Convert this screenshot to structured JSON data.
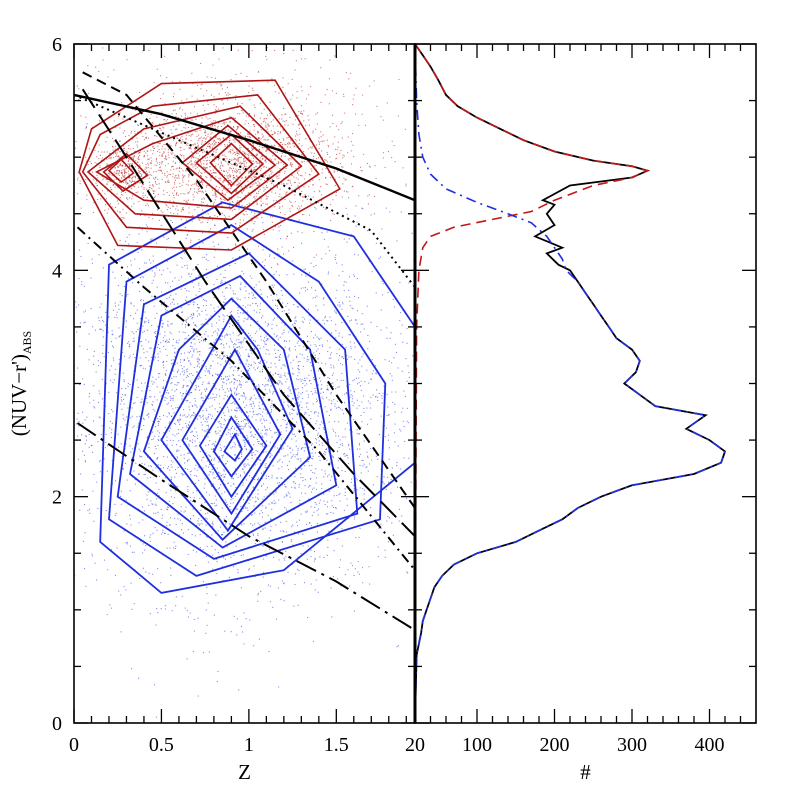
{
  "chart_data": [
    {
      "panel": "left",
      "type": "scatter",
      "xlabel": "Z",
      "ylabel_main": "(NUV−r')",
      "ylabel_sub": "ABS",
      "xlim": [
        0,
        1.95
      ],
      "ylim": [
        0,
        6
      ],
      "x_ticks": [
        "0",
        "0.5",
        "1",
        "1.5"
      ],
      "x_tick_values": [
        0,
        0.5,
        1,
        1.5
      ],
      "y_ticks": [
        "0",
        "2",
        "4",
        "6"
      ],
      "y_tick_values": [
        0,
        2,
        4,
        6
      ],
      "colors": {
        "red": "#b01515",
        "blue": "#1f2fe0",
        "black": "#000000"
      },
      "contours_red": [
        [
          [
            0.2,
            4.88
          ],
          [
            0.27,
            4.78
          ],
          [
            0.34,
            4.86
          ],
          [
            0.27,
            4.98
          ]
        ],
        [
          [
            0.17,
            4.87
          ],
          [
            0.28,
            4.7
          ],
          [
            0.42,
            4.84
          ],
          [
            0.3,
            5.03
          ]
        ],
        [
          [
            0.78,
            4.95
          ],
          [
            0.9,
            4.75
          ],
          [
            1.02,
            4.94
          ],
          [
            0.9,
            5.12
          ]
        ],
        [
          [
            0.7,
            4.95
          ],
          [
            0.9,
            4.68
          ],
          [
            1.08,
            4.94
          ],
          [
            0.9,
            5.2
          ]
        ],
        [
          [
            0.62,
            4.95
          ],
          [
            0.88,
            4.62
          ],
          [
            1.15,
            4.93
          ],
          [
            0.88,
            5.28
          ]
        ],
        [
          [
            0.13,
            4.87
          ],
          [
            0.4,
            4.62
          ],
          [
            0.9,
            4.55
          ],
          [
            1.22,
            4.93
          ],
          [
            0.9,
            5.35
          ],
          [
            0.45,
            5.12
          ]
        ],
        [
          [
            0.08,
            4.87
          ],
          [
            0.35,
            4.5
          ],
          [
            0.9,
            4.45
          ],
          [
            1.3,
            4.92
          ],
          [
            0.95,
            5.45
          ],
          [
            0.4,
            5.25
          ]
        ],
        [
          [
            0.05,
            4.87
          ],
          [
            0.3,
            4.38
          ],
          [
            0.9,
            4.33
          ],
          [
            1.4,
            4.85
          ],
          [
            1.05,
            5.55
          ],
          [
            0.45,
            5.45
          ],
          [
            0.15,
            5.2
          ]
        ],
        [
          [
            0.03,
            4.87
          ],
          [
            0.25,
            4.22
          ],
          [
            0.9,
            4.18
          ],
          [
            1.52,
            4.72
          ],
          [
            1.15,
            5.68
          ],
          [
            0.5,
            5.65
          ],
          [
            0.1,
            5.25
          ]
        ]
      ],
      "contours_blue": [
        [
          [
            0.86,
            2.4
          ],
          [
            0.92,
            2.32
          ],
          [
            0.96,
            2.42
          ],
          [
            0.92,
            2.55
          ]
        ],
        [
          [
            0.8,
            2.4
          ],
          [
            0.9,
            2.18
          ],
          [
            1.02,
            2.42
          ],
          [
            0.9,
            2.7
          ]
        ],
        [
          [
            0.72,
            2.45
          ],
          [
            0.9,
            2.0
          ],
          [
            1.1,
            2.45
          ],
          [
            0.9,
            2.9
          ]
        ],
        [
          [
            0.62,
            2.5
          ],
          [
            0.9,
            1.85
          ],
          [
            1.18,
            2.55
          ],
          [
            0.92,
            3.3
          ]
        ],
        [
          [
            0.5,
            2.5
          ],
          [
            0.88,
            1.7
          ],
          [
            1.25,
            2.6
          ],
          [
            1.05,
            3.3
          ],
          [
            0.9,
            3.6
          ]
        ],
        [
          [
            0.4,
            2.4
          ],
          [
            0.85,
            1.62
          ],
          [
            1.35,
            2.35
          ],
          [
            1.2,
            3.3
          ],
          [
            0.9,
            3.75
          ],
          [
            0.6,
            3.3
          ]
        ],
        [
          [
            0.32,
            2.2
          ],
          [
            0.85,
            1.55
          ],
          [
            1.5,
            2.1
          ],
          [
            1.35,
            3.3
          ],
          [
            0.95,
            3.95
          ],
          [
            0.5,
            3.6
          ]
        ],
        [
          [
            0.25,
            2.0
          ],
          [
            0.8,
            1.45
          ],
          [
            1.62,
            1.85
          ],
          [
            1.55,
            3.3
          ],
          [
            1.0,
            4.15
          ],
          [
            0.4,
            3.7
          ]
        ],
        [
          [
            0.2,
            1.8
          ],
          [
            0.7,
            1.3
          ],
          [
            1.75,
            1.8
          ],
          [
            1.78,
            3.0
          ],
          [
            1.4,
            3.9
          ],
          [
            0.9,
            4.4
          ],
          [
            0.3,
            3.9
          ]
        ],
        [
          [
            0.15,
            1.6
          ],
          [
            0.5,
            1.15
          ],
          [
            1.2,
            1.35
          ],
          [
            1.95,
            2.3
          ],
          [
            1.95,
            3.5
          ],
          [
            1.6,
            4.3
          ],
          [
            0.85,
            4.6
          ],
          [
            0.2,
            4.05
          ]
        ]
      ],
      "curves": [
        {
          "style": "solid",
          "points": [
            [
              0,
              5.55
            ],
            [
              0.5,
              5.38
            ],
            [
              1.0,
              5.15
            ],
            [
              1.5,
              4.9
            ],
            [
              1.95,
              4.62
            ]
          ]
        },
        {
          "style": "dotted",
          "points": [
            [
              0,
              5.55
            ],
            [
              0.6,
              5.15
            ],
            [
              1.2,
              4.75
            ],
            [
              1.7,
              4.35
            ],
            [
              1.95,
              3.85
            ]
          ]
        },
        {
          "style": "dashed",
          "points": [
            [
              0.05,
              5.75
            ],
            [
              0.3,
              5.55
            ],
            [
              0.7,
              4.8
            ],
            [
              1.1,
              3.9
            ],
            [
              1.5,
              2.9
            ],
            [
              1.95,
              1.9
            ]
          ]
        },
        {
          "style": "long-dashed",
          "points": [
            [
              0.05,
              5.6
            ],
            [
              0.3,
              5.0
            ],
            [
              0.75,
              3.9
            ],
            [
              1.2,
              2.9
            ],
            [
              1.6,
              2.2
            ],
            [
              1.95,
              1.65
            ]
          ]
        },
        {
          "style": "dot-dashed",
          "points": [
            [
              0.02,
              4.38
            ],
            [
              0.4,
              3.85
            ],
            [
              0.9,
              3.2
            ],
            [
              1.4,
              2.4
            ],
            [
              1.95,
              1.35
            ]
          ]
        },
        {
          "style": "dot-long-dashed",
          "points": [
            [
              0.02,
              2.65
            ],
            [
              0.5,
              2.15
            ],
            [
              1.0,
              1.65
            ],
            [
              1.5,
              1.25
            ],
            [
              1.95,
              0.82
            ]
          ]
        }
      ]
    },
    {
      "panel": "right",
      "type": "line",
      "xlabel": "#",
      "xlim": [
        20,
        460
      ],
      "ylim": [
        0,
        6
      ],
      "x_ticks": [
        "20",
        "100",
        "200",
        "300",
        "400"
      ],
      "x_tick_values": [
        20,
        100,
        200,
        300,
        400
      ],
      "y_tick_values": [
        0,
        2,
        4,
        6
      ],
      "series": [
        {
          "style": "solid",
          "color": "#000000",
          "points": [
            [
              20,
              6.0
            ],
            [
              30,
              5.9
            ],
            [
              40,
              5.8
            ],
            [
              50,
              5.68
            ],
            [
              60,
              5.55
            ],
            [
              75,
              5.45
            ],
            [
              100,
              5.35
            ],
            [
              130,
              5.25
            ],
            [
              160,
              5.15
            ],
            [
              200,
              5.05
            ],
            [
              250,
              4.97
            ],
            [
              300,
              4.92
            ],
            [
              320,
              4.88
            ],
            [
              300,
              4.82
            ],
            [
              220,
              4.75
            ],
            [
              185,
              4.62
            ],
            [
              200,
              4.58
            ],
            [
              190,
              4.5
            ],
            [
              200,
              4.4
            ],
            [
              175,
              4.3
            ],
            [
              210,
              4.2
            ],
            [
              190,
              4.15
            ],
            [
              205,
              4.05
            ],
            [
              220,
              4.0
            ],
            [
              230,
              3.9
            ],
            [
              240,
              3.8
            ],
            [
              250,
              3.7
            ],
            [
              260,
              3.6
            ],
            [
              270,
              3.5
            ],
            [
              280,
              3.4
            ],
            [
              300,
              3.3
            ],
            [
              310,
              3.2
            ],
            [
              305,
              3.1
            ],
            [
              290,
              3.0
            ],
            [
              310,
              2.9
            ],
            [
              330,
              2.8
            ],
            [
              395,
              2.72
            ],
            [
              370,
              2.6
            ],
            [
              400,
              2.5
            ],
            [
              420,
              2.4
            ],
            [
              415,
              2.3
            ],
            [
              380,
              2.2
            ],
            [
              300,
              2.1
            ],
            [
              260,
              2.0
            ],
            [
              230,
              1.9
            ],
            [
              210,
              1.8
            ],
            [
              180,
              1.7
            ],
            [
              150,
              1.6
            ],
            [
              100,
              1.5
            ],
            [
              70,
              1.4
            ],
            [
              55,
              1.3
            ],
            [
              45,
              1.2
            ],
            [
              40,
              1.1
            ],
            [
              35,
              1.0
            ],
            [
              30,
              0.9
            ],
            [
              28,
              0.8
            ],
            [
              25,
              0.7
            ],
            [
              22,
              0.6
            ],
            [
              21,
              0.3
            ],
            [
              20,
              0.0
            ]
          ]
        },
        {
          "style": "dashed",
          "color": "#c01818",
          "points": [
            [
              20,
              6.0
            ],
            [
              30,
              5.9
            ],
            [
              40,
              5.8
            ],
            [
              50,
              5.68
            ],
            [
              60,
              5.55
            ],
            [
              75,
              5.45
            ],
            [
              100,
              5.35
            ],
            [
              130,
              5.25
            ],
            [
              160,
              5.15
            ],
            [
              200,
              5.05
            ],
            [
              250,
              4.97
            ],
            [
              300,
              4.92
            ],
            [
              320,
              4.88
            ],
            [
              300,
              4.82
            ],
            [
              250,
              4.75
            ],
            [
              200,
              4.62
            ],
            [
              170,
              4.52
            ],
            [
              120,
              4.45
            ],
            [
              70,
              4.38
            ],
            [
              40,
              4.3
            ],
            [
              30,
              4.2
            ],
            [
              25,
              4.0
            ],
            [
              22,
              3.5
            ],
            [
              21,
              2.0
            ],
            [
              20,
              0.0
            ]
          ]
        },
        {
          "style": "dot-dashed",
          "color": "#1f2fe0",
          "points": [
            [
              20,
              6.0
            ],
            [
              22,
              5.5
            ],
            [
              25,
              5.2
            ],
            [
              30,
              5.0
            ],
            [
              40,
              4.85
            ],
            [
              60,
              4.72
            ],
            [
              100,
              4.6
            ],
            [
              140,
              4.5
            ],
            [
              170,
              4.42
            ],
            [
              190,
              4.3
            ],
            [
              200,
              4.2
            ],
            [
              210,
              4.1
            ],
            [
              215,
              4.0
            ],
            [
              230,
              3.9
            ],
            [
              240,
              3.8
            ],
            [
              250,
              3.7
            ],
            [
              260,
              3.6
            ],
            [
              270,
              3.5
            ],
            [
              280,
              3.4
            ],
            [
              300,
              3.3
            ],
            [
              310,
              3.2
            ],
            [
              305,
              3.1
            ],
            [
              290,
              3.0
            ],
            [
              310,
              2.9
            ],
            [
              330,
              2.8
            ],
            [
              395,
              2.72
            ],
            [
              370,
              2.6
            ],
            [
              400,
              2.5
            ],
            [
              420,
              2.4
            ],
            [
              415,
              2.3
            ],
            [
              380,
              2.2
            ],
            [
              300,
              2.1
            ],
            [
              260,
              2.0
            ],
            [
              230,
              1.9
            ],
            [
              210,
              1.8
            ],
            [
              180,
              1.7
            ],
            [
              150,
              1.6
            ],
            [
              100,
              1.5
            ],
            [
              70,
              1.4
            ],
            [
              55,
              1.3
            ],
            [
              45,
              1.2
            ],
            [
              40,
              1.1
            ],
            [
              35,
              1.0
            ],
            [
              30,
              0.9
            ],
            [
              28,
              0.8
            ],
            [
              25,
              0.7
            ],
            [
              22,
              0.6
            ],
            [
              21,
              0.3
            ],
            [
              20,
              0.0
            ]
          ]
        }
      ]
    }
  ]
}
